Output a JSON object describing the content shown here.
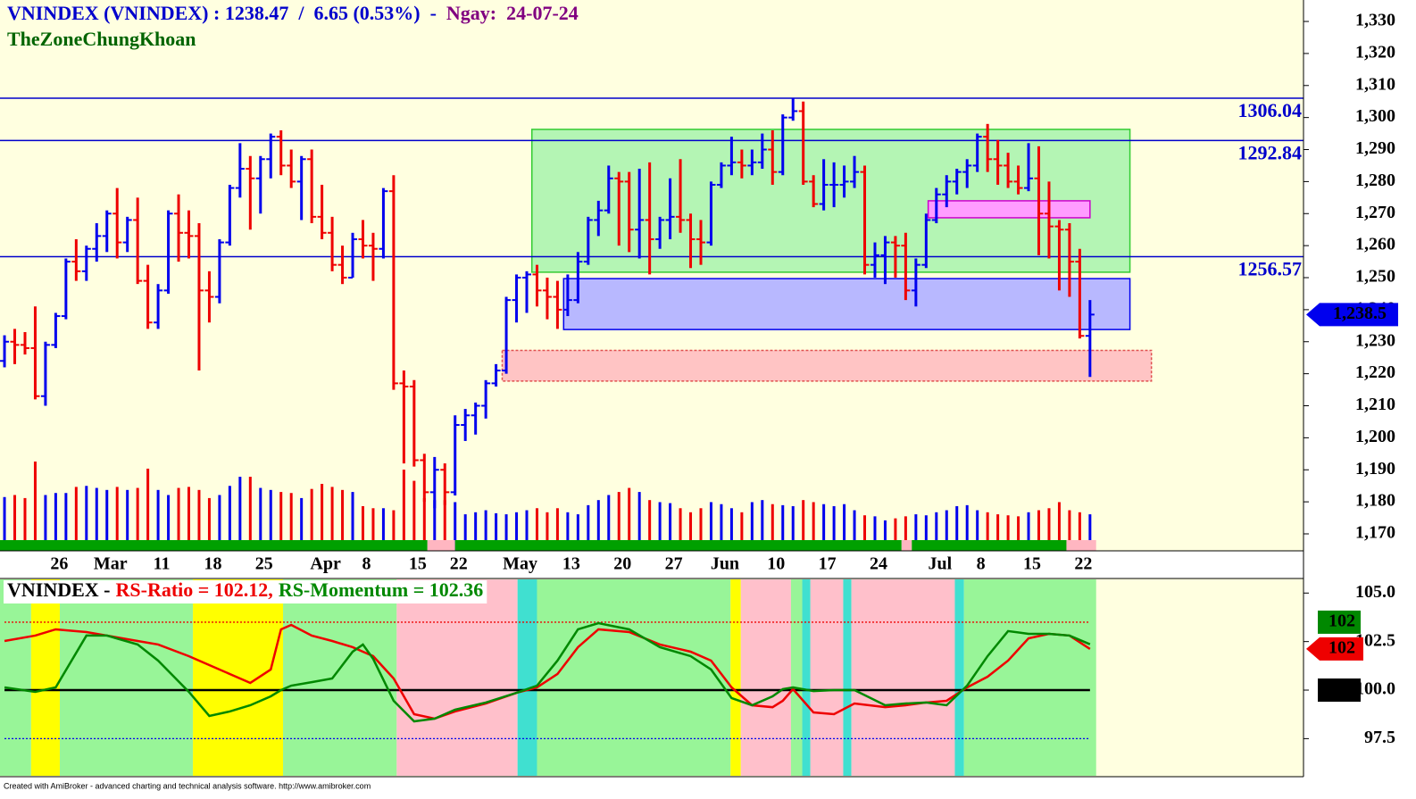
{
  "chart_data": [
    {
      "type": "ohlc",
      "title": "VNINDEX (VNINDEX) : 1238.47  /  6.65 (0.53%)  -  ",
      "date_label": "Ngay:  24-07-24",
      "subtitle": "TheZoneChungKhoan",
      "categories": [
        null,
        null,
        null,
        null,
        null,
        "26",
        null,
        null,
        null,
        null,
        "Mar",
        null,
        null,
        null,
        null,
        "11",
        null,
        null,
        null,
        null,
        "18",
        null,
        null,
        null,
        null,
        "25",
        null,
        null,
        null,
        null,
        null,
        "Apr",
        null,
        null,
        null,
        "8",
        null,
        null,
        null,
        null,
        "15",
        null,
        null,
        null,
        "22",
        null,
        null,
        null,
        null,
        null,
        "May",
        null,
        null,
        null,
        null,
        "13",
        null,
        null,
        null,
        null,
        "20",
        null,
        null,
        null,
        null,
        "27",
        null,
        null,
        null,
        null,
        "Jun",
        null,
        null,
        null,
        null,
        "10",
        null,
        null,
        null,
        null,
        "17",
        null,
        null,
        null,
        null,
        "24",
        null,
        null,
        null,
        null,
        null,
        "Jul",
        null,
        null,
        null,
        "8",
        null,
        null,
        null,
        null,
        "15",
        null,
        null,
        null,
        null,
        "22",
        null
      ],
      "open": [
        1224,
        1230,
        1229,
        1228,
        1213,
        1229,
        1238,
        1255,
        1252,
        1259,
        1263,
        1270,
        1261,
        1268,
        1249,
        1236,
        1246,
        1270,
        1264,
        1263,
        1246,
        1244,
        1261,
        1278,
        1284,
        1281,
        1287,
        1294,
        1285,
        1280,
        1287,
        1269,
        1264,
        1254,
        1250,
        1262,
        1260,
        1259,
        1277,
        1217,
        1216,
        1193,
        1183,
        1190,
        1183,
        1204,
        1207,
        1210,
        1217,
        1221,
        1243,
        1250,
        1251,
        1246,
        1244,
        1240,
        1243,
        1255,
        1268,
        1271,
        1281,
        1280,
        1265,
        1268,
        1262,
        1268,
        1269,
        1268,
        1262,
        1261,
        1279,
        1285,
        1286,
        1285,
        1286,
        1290,
        1283,
        1300,
        1302,
        1280,
        1273,
        1279,
        1279,
        1280,
        1283,
        1254,
        1257,
        1261,
        1260,
        1246,
        1254,
        1268,
        1276,
        1280,
        1283,
        1285,
        1294,
        1287,
        1285,
        1280,
        1278,
        1281,
        1270,
        1266,
        1265,
        1255,
        1231.82
      ],
      "high": [
        1232,
        1234,
        1233,
        1241,
        1230,
        1239,
        1256,
        1262,
        1260,
        1267,
        1271,
        1278,
        1269,
        1275,
        1254,
        1248,
        1271,
        1276,
        1271,
        1267,
        1252,
        1262,
        1279,
        1292,
        1288,
        1288,
        1295,
        1296,
        1290,
        1288,
        1290,
        1279,
        1269,
        1260,
        1264,
        1268,
        1264,
        1278,
        1282,
        1221,
        1218,
        1195,
        1194,
        1192,
        1207,
        1209,
        1211,
        1218,
        1223,
        1244,
        1251,
        1252,
        1254,
        1250,
        1249,
        1251,
        1258,
        1269,
        1274,
        1285,
        1283,
        1283,
        1284,
        1286,
        1269,
        1281,
        1287,
        1270,
        1268,
        1280,
        1286,
        1294,
        1290,
        1290,
        1295,
        1296,
        1301,
        1306.04,
        1305,
        1282,
        1287,
        1286,
        1285,
        1288,
        1285,
        1261,
        1263,
        1263,
        1264,
        1256,
        1270,
        1278,
        1282,
        1284,
        1287,
        1295,
        1298,
        1293,
        1289,
        1285,
        1292,
        1291,
        1280,
        1268,
        1267,
        1259,
        1243
      ],
      "low": [
        1222,
        1223,
        1226,
        1212,
        1210,
        1228,
        1237,
        1249,
        1249,
        1255,
        1258,
        1256,
        1258,
        1248,
        1234,
        1234,
        1245,
        1255,
        1256,
        1221,
        1236,
        1242,
        1260,
        1275,
        1265,
        1270,
        1281,
        1282,
        1278,
        1268,
        1267,
        1262,
        1252,
        1248,
        1250,
        1256,
        1249,
        1256,
        1215,
        1192,
        1191,
        1180,
        1178,
        1179,
        1182,
        1199,
        1201,
        1206,
        1216,
        1220,
        1236,
        1239,
        1241,
        1237,
        1234,
        1238,
        1242,
        1254,
        1263,
        1270,
        1260,
        1258,
        1256,
        1251,
        1259,
        1262,
        1264,
        1253,
        1254,
        1260,
        1278,
        1282,
        1281,
        1282,
        1284,
        1279,
        1282,
        1299,
        1279,
        1272,
        1271,
        1272,
        1275,
        1278,
        1251,
        1250,
        1248,
        1250,
        1243,
        1241,
        1253,
        1267,
        1272,
        1276,
        1278,
        1283,
        1283,
        1279,
        1278,
        1276,
        1277,
        1257,
        1256,
        1246,
        1244,
        1231,
        1219
      ],
      "close": [
        1230,
        1229,
        1228,
        1213,
        1229,
        1238,
        1255,
        1252,
        1259,
        1263,
        1270,
        1261,
        1268,
        1249,
        1236,
        1246,
        1270,
        1264,
        1263,
        1246,
        1244,
        1261,
        1278,
        1284,
        1281,
        1287,
        1294,
        1285,
        1280,
        1287,
        1269,
        1264,
        1254,
        1250,
        1262,
        1260,
        1259,
        1277,
        1217,
        1216,
        1193,
        1183,
        1190,
        1183,
        1204,
        1207,
        1210,
        1217,
        1221,
        1243,
        1250,
        1251,
        1246,
        1244,
        1240,
        1243,
        1255,
        1268,
        1271,
        1281,
        1280,
        1265,
        1268,
        1262,
        1268,
        1269,
        1268,
        1262,
        1261,
        1279,
        1285,
        1286,
        1285,
        1286,
        1290,
        1283,
        1300,
        1302,
        1280,
        1273,
        1279,
        1279,
        1280,
        1283,
        1254,
        1257,
        1261,
        1260,
        1246,
        1254,
        1268,
        1276,
        1280,
        1283,
        1285,
        1294,
        1287,
        1285,
        1280,
        1278,
        1281,
        1270,
        1266,
        1265,
        1255,
        1231.82,
        1238.47
      ],
      "last_value_label": "1,238.5",
      "volume": [
        53,
        55,
        52,
        88,
        55,
        57,
        57,
        63,
        64,
        62,
        60,
        63,
        60,
        62,
        81,
        60,
        55,
        62,
        63,
        60,
        52,
        55,
        64,
        73,
        73,
        62,
        60,
        58,
        57,
        52,
        61,
        66,
        63,
        60,
        58,
        44,
        42,
        42,
        40,
        80,
        69,
        52,
        50,
        50,
        48,
        36,
        38,
        40,
        37,
        36,
        38,
        40,
        42,
        38,
        42,
        38,
        36,
        45,
        50,
        55,
        58,
        62,
        58,
        50,
        48,
        47,
        42,
        38,
        42,
        48,
        46,
        42,
        38,
        48,
        50,
        46,
        45,
        44,
        50,
        48,
        46,
        44,
        46,
        40,
        35,
        34,
        30,
        32,
        34,
        36,
        35,
        38,
        40,
        44,
        45,
        40,
        38,
        36,
        35,
        34,
        38,
        40,
        42,
        48,
        40,
        38,
        36
      ],
      "up_color": "#0000ee",
      "down_color": "#ee0000",
      "xlim": [
        -0.44,
        126.85
      ],
      "ylim": [
        1164.7,
        1336.7
      ],
      "yticks": [
        {
          "value": 1170,
          "label": "1,170"
        },
        {
          "value": 1180,
          "label": "1,180"
        },
        {
          "value": 1190,
          "label": "1,190"
        },
        {
          "value": 1200,
          "label": "1,200"
        },
        {
          "value": 1210,
          "label": "1,210"
        },
        {
          "value": 1220,
          "label": "1,220"
        },
        {
          "value": 1230,
          "label": "1,230"
        },
        {
          "value": 1240,
          "label": "1,240"
        },
        {
          "value": 1250,
          "label": "1,250"
        },
        {
          "value": 1260,
          "label": "1,260"
        },
        {
          "value": 1270,
          "label": "1,270"
        },
        {
          "value": 1280,
          "label": "1,280"
        },
        {
          "value": 1290,
          "label": "1,290"
        },
        {
          "value": 1300,
          "label": "1,300"
        },
        {
          "value": 1310,
          "label": "1,310"
        },
        {
          "value": 1320,
          "label": "1,320"
        },
        {
          "value": 1330,
          "label": "1,330"
        }
      ],
      "levels": [
        1306.04,
        1292.84,
        1256.57
      ],
      "level_color": "#0000cc",
      "zones": [
        {
          "from": 51.5,
          "to": 109.9,
          "top": 1296.3,
          "bottom": 1251.7,
          "fill": "#b4f5b4",
          "stroke": "#33cc33",
          "dashed": false
        },
        {
          "from": 54.6,
          "to": 109.9,
          "top": 1249.7,
          "bottom": 1233.8,
          "fill": "#b8b8ff",
          "stroke": "#0000ee",
          "dashed": false
        },
        {
          "from": 90.2,
          "to": 106.0,
          "top": 1274.0,
          "bottom": 1268.7,
          "fill": "#ff9cff",
          "stroke": "#cc00cc",
          "dashed": false
        },
        {
          "from": 48.6,
          "to": 112.0,
          "top": 1227.3,
          "bottom": 1217.7,
          "fill": "#ffc4c4",
          "stroke": "#e05050",
          "dashed": true
        }
      ],
      "signal_bands": [
        {
          "from": -0.44,
          "to": 41.3,
          "color": "#00a000"
        },
        {
          "from": 41.3,
          "to": 44.0,
          "color": "#ffb6c1"
        },
        {
          "from": 44.0,
          "to": 87.6,
          "color": "#00a000"
        },
        {
          "from": 87.6,
          "to": 88.6,
          "color": "#ffb6c1"
        },
        {
          "from": 88.6,
          "to": 103.7,
          "color": "#00a000"
        },
        {
          "from": 103.7,
          "to": 106.6,
          "color": "#ffb6c1"
        }
      ]
    },
    {
      "type": "line",
      "title": "VNINDEX -",
      "xlim": [
        -0.44,
        126.85
      ],
      "x": [
        0,
        3,
        5,
        8,
        10,
        13,
        15,
        18,
        20,
        22,
        24,
        26,
        27,
        28,
        30,
        32,
        34,
        35,
        36,
        38,
        40,
        42,
        44,
        47,
        50,
        52,
        54,
        56,
        58,
        61,
        64,
        67,
        69,
        71,
        73,
        75,
        76,
        77,
        79,
        81,
        83,
        86,
        88,
        90,
        92,
        94,
        96,
        98,
        100,
        102,
        104,
        106
      ],
      "series": [
        {
          "name": "RS-Ratio = 102.12,",
          "color": "#ee0000",
          "last_label": "102",
          "marker_shape": "arrow",
          "values": [
            102.53,
            102.81,
            103.13,
            102.99,
            102.81,
            102.53,
            102.35,
            101.75,
            101.29,
            100.83,
            100.37,
            101.06,
            103.13,
            103.36,
            102.81,
            102.53,
            102.21,
            101.98,
            101.75,
            100.6,
            98.76,
            98.53,
            98.9,
            99.31,
            99.86,
            100.14,
            100.83,
            102.21,
            103.13,
            102.99,
            102.35,
            101.98,
            101.52,
            100.14,
            99.22,
            99.12,
            99.45,
            100.05,
            98.85,
            98.76,
            99.31,
            99.12,
            99.22,
            99.36,
            99.45,
            100.14,
            100.69,
            101.52,
            102.67,
            102.9,
            102.81,
            102.12
          ]
        },
        {
          "name": "RS-Momentum = 102.36",
          "color": "#008800",
          "last_label": "102",
          "marker_shape": "box",
          "values": [
            100.14,
            99.91,
            100.14,
            102.81,
            102.81,
            102.35,
            101.52,
            99.91,
            98.67,
            98.9,
            99.22,
            99.68,
            100,
            100.23,
            100.41,
            100.6,
            101.98,
            102.35,
            101.61,
            99.45,
            98.39,
            98.53,
            98.99,
            99.36,
            99.86,
            100.23,
            101.52,
            103.13,
            103.45,
            103.13,
            102.21,
            101.75,
            101.06,
            99.59,
            99.22,
            99.68,
            100.05,
            100.14,
            99.95,
            100,
            100,
            99.22,
            99.31,
            99.36,
            99.22,
            100.23,
            101.75,
            103.04,
            102.9,
            102.9,
            102.81,
            102.36
          ]
        }
      ],
      "ylim": [
        95.54,
        105.75
      ],
      "yticks": [
        {
          "value": 105,
          "label": "105.0"
        },
        {
          "value": 102.5,
          "label": "102.5"
        },
        {
          "value": 100,
          "label": "100.0"
        },
        {
          "value": 97.5,
          "label": "97.5"
        }
      ],
      "hlines": [
        {
          "value": 100,
          "color": "#000000",
          "dotted": false,
          "tag": true
        },
        {
          "value": 103.5,
          "color": "#ee0000",
          "dotted": true,
          "tag": false
        },
        {
          "value": 97.5,
          "color": "#0000ee",
          "dotted": true,
          "tag": false
        }
      ],
      "bands": [
        {
          "from": -0.44,
          "to": 2.6,
          "color": "#98f598"
        },
        {
          "from": 2.6,
          "to": 5.4,
          "color": "#ffff00"
        },
        {
          "from": 5.4,
          "to": 18.4,
          "color": "#98f598"
        },
        {
          "from": 18.4,
          "to": 27.2,
          "color": "#ffff00"
        },
        {
          "from": 27.2,
          "to": 38.3,
          "color": "#98f598"
        },
        {
          "from": 38.3,
          "to": 50.1,
          "color": "#ffc0cb"
        },
        {
          "from": 50.1,
          "to": 52.0,
          "color": "#40e0d0"
        },
        {
          "from": 52.0,
          "to": 70.9,
          "color": "#98f598"
        },
        {
          "from": 70.9,
          "to": 71.9,
          "color": "#ffff00"
        },
        {
          "from": 71.9,
          "to": 76.8,
          "color": "#ffc0cb"
        },
        {
          "from": 76.8,
          "to": 77.9,
          "color": "#98f598"
        },
        {
          "from": 77.9,
          "to": 78.7,
          "color": "#40e0d0"
        },
        {
          "from": 78.7,
          "to": 81.9,
          "color": "#ffc0cb"
        },
        {
          "from": 81.9,
          "to": 82.7,
          "color": "#40e0d0"
        },
        {
          "from": 82.7,
          "to": 92.8,
          "color": "#ffc0cb"
        },
        {
          "from": 92.8,
          "to": 93.7,
          "color": "#40e0d0"
        },
        {
          "from": 93.7,
          "to": 106.6,
          "color": "#98f598"
        }
      ]
    }
  ],
  "footer": "Created with AmiBroker - advanced charting and technical analysis software. http://www.amibroker.com"
}
